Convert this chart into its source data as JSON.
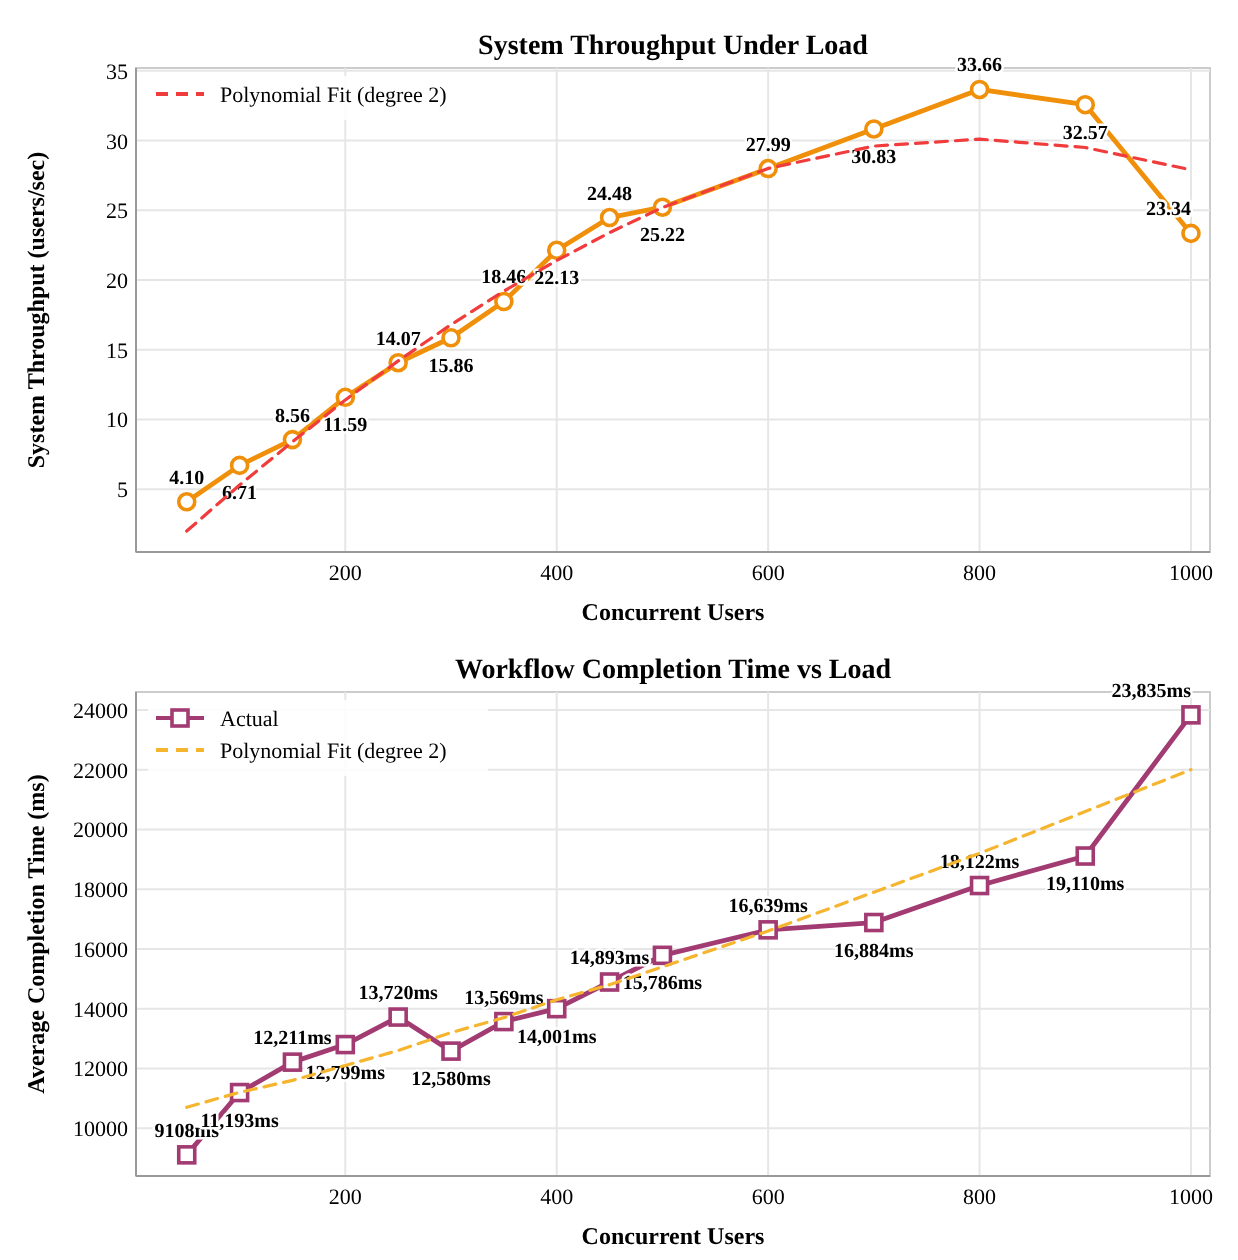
{
  "chart_data": [
    {
      "type": "line",
      "title": "System Throughput Under Load",
      "xlabel": "Concurrent Users",
      "ylabel": "System Throughput (users/sec)",
      "x": [
        50,
        100,
        150,
        200,
        250,
        300,
        350,
        400,
        450,
        500,
        600,
        700,
        800,
        900,
        1000
      ],
      "xlim": [
        2,
        1018
      ],
      "xticks": [
        200,
        400,
        600,
        800,
        1000
      ],
      "ylim": [
        0.5,
        35.2
      ],
      "yticks": [
        5,
        10,
        15,
        20,
        25,
        30,
        35
      ],
      "grid": true,
      "legend": "top left",
      "series": [
        {
          "color": "#f0900a",
          "marker": "circle",
          "line_style": "solid",
          "values": [
            4.1,
            6.71,
            8.56,
            11.59,
            14.07,
            15.86,
            18.46,
            22.13,
            24.48,
            25.22,
            27.99,
            30.83,
            33.66,
            32.57,
            23.34
          ],
          "value_labels": [
            "4.10",
            "6.71",
            "8.56",
            "11.59",
            "14.07",
            "15.86",
            "18.46",
            "22.13",
            "24.48",
            "25.22",
            "27.99",
            "30.83",
            "33.66",
            "32.57",
            "23.34"
          ]
        },
        {
          "name": "Polynomial Fit (degree 2)",
          "color": "#f03c3c",
          "marker": "none",
          "line_style": "dashed",
          "values": [
            2.0,
            5.3,
            8.4,
            11.4,
            14.2,
            16.8,
            19.2,
            21.4,
            23.4,
            25.2,
            28.0,
            29.6,
            30.1,
            29.5,
            27.9
          ]
        }
      ]
    },
    {
      "type": "line",
      "title": "Workflow Completion Time vs Load",
      "xlabel": "Concurrent Users",
      "ylabel": "Average Completion Time (ms)",
      "x": [
        50,
        100,
        150,
        200,
        250,
        300,
        350,
        400,
        450,
        500,
        600,
        700,
        800,
        900,
        1000
      ],
      "xlim": [
        2,
        1018
      ],
      "xticks": [
        200,
        400,
        600,
        800,
        1000
      ],
      "ylim": [
        8400,
        24600
      ],
      "yticks": [
        10000,
        12000,
        14000,
        16000,
        18000,
        20000,
        22000,
        24000
      ],
      "grid": true,
      "legend": "top left",
      "series": [
        {
          "name": "Actual",
          "color": "#a23b72",
          "marker": "square",
          "line_style": "solid",
          "values": [
            9108,
            11193,
            12211,
            12799,
            13720,
            12580,
            13569,
            14001,
            14893,
            15786,
            16639,
            16884,
            18122,
            19110,
            23835
          ],
          "value_labels": [
            "9108ms",
            "11,193ms",
            "12,211ms",
            "12,799ms",
            "13,720ms",
            "12,580ms",
            "13,569ms",
            "14,001ms",
            "14,893ms",
            "15,786ms",
            "16,639ms",
            "16,884ms",
            "18,122ms",
            "19,110ms",
            "23,835ms"
          ]
        },
        {
          "name": "Polynomial Fit (degree 2)",
          "color": "#f5b52e",
          "marker": "none",
          "line_style": "dashed",
          "values": [
            10700,
            11200,
            11600,
            12100,
            12600,
            13200,
            13700,
            14300,
            14800,
            15400,
            16600,
            17900,
            19200,
            20600,
            22000
          ]
        }
      ]
    }
  ]
}
